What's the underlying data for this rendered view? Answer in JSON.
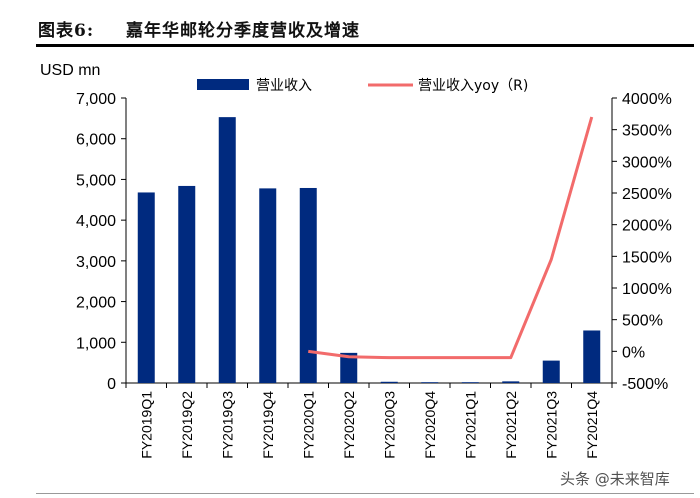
{
  "header": {
    "figure_number": "图表6:",
    "title": "嘉年华邮轮分季度营收及增速"
  },
  "watermark": "头条 @未来智库",
  "chart_data": {
    "type": "bar+line",
    "categories": [
      "FY2019Q1",
      "FY2019Q2",
      "FY2019Q3",
      "FY2019Q4",
      "FY2020Q1",
      "FY2020Q2",
      "FY2020Q3",
      "FY2020Q4",
      "FY2021Q1",
      "FY2021Q2",
      "FY2021Q3",
      "FY2021Q4"
    ],
    "y_left": {
      "label": "USD mn",
      "ylim": [
        0,
        7000
      ],
      "ticks": [
        0,
        1000,
        2000,
        3000,
        4000,
        5000,
        6000,
        7000
      ],
      "tick_labels": [
        "0",
        "1,000",
        "2,000",
        "3,000",
        "4,000",
        "5,000",
        "6,000",
        "7,000"
      ]
    },
    "y_right": {
      "ylim": [
        -500,
        4000
      ],
      "ticks": [
        -500,
        0,
        500,
        1000,
        1500,
        2000,
        2500,
        3000,
        3500,
        4000
      ],
      "tick_labels": [
        "-500%",
        "0%",
        "500%",
        "1000%",
        "1500%",
        "2000%",
        "2500%",
        "3000%",
        "3500%",
        "4000%"
      ]
    },
    "series": [
      {
        "name": "营业收入",
        "type": "bar",
        "axis": "left",
        "color": "#002a7f",
        "values": [
          4680,
          4840,
          6530,
          4780,
          4790,
          740,
          30,
          20,
          20,
          40,
          550,
          1290
        ]
      },
      {
        "name": "营业收入yoy（R)",
        "type": "line",
        "axis": "right",
        "color": "#f26b6b",
        "values": [
          null,
          null,
          null,
          null,
          0,
          -85,
          -100,
          -100,
          -100,
          -100,
          1450,
          3700
        ]
      }
    ],
    "legend": "top-center"
  }
}
